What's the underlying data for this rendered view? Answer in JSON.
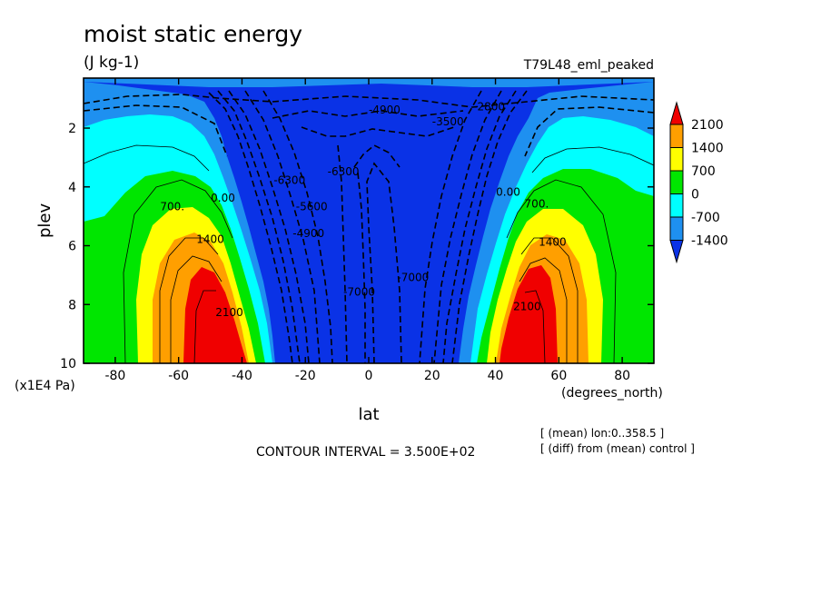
{
  "header": {
    "title": "moist static energy",
    "units": "(J kg-1)",
    "experiment": "T79L48_eml_peaked"
  },
  "footer": {
    "contour_interval": "CONTOUR INTERVAL = 3.500E+02",
    "note_lon": "[ (mean) lon:0..358.5 ]",
    "note_diff": "[ (diff) from (mean) control ]"
  },
  "colors": {
    "darkblue": "#0a32e6",
    "blue": "#1e90f0",
    "cyan": "#00ffff",
    "green": "#00e600",
    "yellow": "#ffff00",
    "orange": "#ff9f00",
    "red": "#f00000"
  },
  "chart_data": {
    "type": "contour",
    "title": "moist static energy",
    "units": "(J kg-1)",
    "xlabel": "lat",
    "x_unit_label": "(degrees_north)",
    "ylabel": "plev",
    "y_unit_label": "(x1E4 Pa)",
    "xlim": [
      -90,
      90
    ],
    "ylim": [
      10,
      0.3
    ],
    "x_ticks": [
      -80,
      -60,
      -40,
      -20,
      0,
      20,
      40,
      60,
      80
    ],
    "x_tick_labels": [
      "-80",
      "-60",
      "-40",
      "-20",
      "0",
      "20",
      "40",
      "60",
      "80"
    ],
    "y_ticks": [
      2,
      4,
      6,
      8,
      10
    ],
    "y_tick_labels": [
      "2",
      "4",
      "6",
      "8",
      "10"
    ],
    "contour_interval": 350,
    "colorbar": {
      "labels": [
        "2100",
        "1400",
        "700",
        "0",
        "-700",
        "-1400"
      ],
      "colors": [
        "#f00000",
        "#ff9f00",
        "#ffff00",
        "#00e600",
        "#00ffff",
        "#1e90f0",
        "#0a32e6"
      ]
    },
    "contour_labels": [
      {
        "text": "-4900",
        "lat": 5,
        "plev": 1.5
      },
      {
        "text": "-3500",
        "lat": 25,
        "plev": 1.9
      },
      {
        "text": "-2800",
        "lat": 38,
        "plev": 1.4
      },
      {
        "text": "-6300",
        "lat": -25,
        "plev": 3.9
      },
      {
        "text": "-5600",
        "lat": -18,
        "plev": 4.8
      },
      {
        "text": "-4900",
        "lat": -19,
        "plev": 5.7
      },
      {
        "text": "-6300",
        "lat": -8,
        "plev": 3.6
      },
      {
        "text": "-7000",
        "lat": -3,
        "plev": 7.7
      },
      {
        "text": "-7000",
        "lat": 14,
        "plev": 7.2
      },
      {
        "text": "0.00",
        "lat": -46,
        "plev": 4.5
      },
      {
        "text": "0.00",
        "lat": 44,
        "plev": 4.3
      },
      {
        "text": "700.",
        "lat": -62,
        "plev": 4.8
      },
      {
        "text": "700.",
        "lat": 53,
        "plev": 4.7
      },
      {
        "text": "1400",
        "lat": -50,
        "plev": 5.9
      },
      {
        "text": "1400",
        "lat": 58,
        "plev": 6.0
      },
      {
        "text": "2100",
        "lat": -44,
        "plev": 8.4
      },
      {
        "text": "2100",
        "lat": 50,
        "plev": 8.2
      }
    ]
  }
}
